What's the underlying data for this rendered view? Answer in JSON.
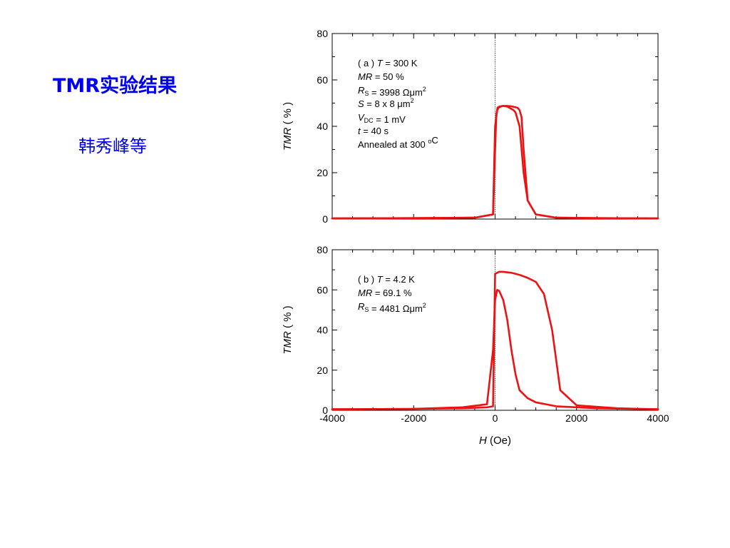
{
  "slide": {
    "title": "TMR实验结果",
    "authors": "韩秀峰等"
  },
  "chart_data": [
    {
      "type": "line",
      "panel": "a",
      "ylabel": "TMR ( % )",
      "xlim": [
        -4000,
        4000
      ],
      "ylim": [
        0,
        80
      ],
      "yticks": [
        0,
        20,
        40,
        60,
        80
      ],
      "annotations": [
        {
          "rich": [
            [
              "( a ) ",
              false
            ],
            [
              "T",
              true
            ],
            [
              " = 300 K",
              false
            ]
          ]
        },
        {
          "rich": [
            [
              "MR",
              true
            ],
            [
              " = 50 %",
              false
            ]
          ]
        },
        {
          "rich": [
            [
              "R",
              true
            ],
            [
              "S",
              false,
              "sub"
            ],
            [
              " = 3998 Ωμm",
              false
            ],
            [
              "2",
              false,
              "sup"
            ]
          ]
        },
        {
          "rich": [
            [
              "S",
              true
            ],
            [
              " = 8 x 8 μm",
              false
            ],
            [
              "2",
              false,
              "sup"
            ]
          ]
        },
        {
          "rich": [
            [
              "V",
              true
            ],
            [
              "DC",
              false,
              "sub"
            ],
            [
              " = 1 mV",
              false
            ]
          ]
        },
        {
          "rich": [
            [
              " t",
              true
            ],
            [
              " = 40 s",
              false
            ]
          ]
        },
        {
          "rich": [
            [
              "Annealed at 300 ",
              false
            ],
            [
              "o",
              false,
              "sup"
            ],
            [
              "C",
              false
            ]
          ]
        }
      ],
      "series": [
        {
          "x": [
            -4000,
            -2000,
            -500,
            -50,
            0,
            30,
            60,
            100,
            200,
            300,
            400,
            450,
            500,
            600,
            700,
            800,
            1000,
            1500,
            2500,
            4000
          ],
          "y": [
            0.3,
            0.4,
            0.6,
            2,
            30,
            45,
            48,
            48.5,
            48.8,
            48.5,
            47.5,
            47,
            46,
            40,
            20,
            8,
            2,
            0.6,
            0.4,
            0.3
          ]
        },
        {
          "x": [
            4000,
            2500,
            1500,
            1000,
            800,
            700,
            650,
            600,
            550,
            500,
            400,
            300,
            200,
            100,
            50,
            0,
            -50,
            -500,
            -2000,
            -4000
          ],
          "y": [
            0.3,
            0.4,
            0.6,
            2,
            8,
            30,
            44,
            47,
            48,
            48.2,
            48.6,
            48.8,
            48.8,
            48.3,
            47,
            40,
            2,
            0.6,
            0.4,
            0.3
          ]
        }
      ],
      "color": "#ee1111"
    },
    {
      "type": "line",
      "panel": "b",
      "xlabel": "H (Oe)",
      "ylabel": "TMR ( % )",
      "xlim": [
        -4000,
        4000
      ],
      "ylim": [
        0,
        80
      ],
      "xticks": [
        -4000,
        -2000,
        0,
        2000,
        4000
      ],
      "yticks": [
        0,
        20,
        40,
        60,
        80
      ],
      "annotations": [
        {
          "rich": [
            [
              "( b ) ",
              false
            ],
            [
              "T",
              true
            ],
            [
              " = 4.2 K",
              false
            ]
          ]
        },
        {
          "rich": [
            [
              "MR",
              true
            ],
            [
              " = 69.1 %",
              false
            ]
          ]
        },
        {
          "rich": [
            [
              "R",
              true
            ],
            [
              "S",
              false,
              "sub"
            ],
            [
              " = 4481 Ωμm",
              false
            ],
            [
              "2",
              false,
              "sup"
            ]
          ]
        }
      ],
      "series": [
        {
          "x": [
            -4000,
            -2000,
            -800,
            -200,
            -50,
            0,
            50,
            100,
            200,
            300,
            400,
            500,
            600,
            800,
            1000,
            1500,
            2500,
            4000
          ],
          "y": [
            0.5,
            0.7,
            1.5,
            3,
            30,
            55,
            60,
            59.5,
            55,
            45,
            30,
            18,
            10,
            6,
            4,
            2,
            1,
            0.5
          ]
        },
        {
          "x": [
            4000,
            3000,
            2000,
            1600,
            1400,
            1200,
            1000,
            800,
            600,
            400,
            200,
            100,
            0,
            -50,
            -200,
            -800,
            -2000,
            -4000
          ],
          "y": [
            0.5,
            1,
            2.5,
            10,
            40,
            58,
            64,
            66,
            67.5,
            68.5,
            69,
            69,
            68,
            2,
            1.5,
            1,
            0.7,
            0.5
          ]
        }
      ],
      "color": "#ee1111"
    }
  ]
}
